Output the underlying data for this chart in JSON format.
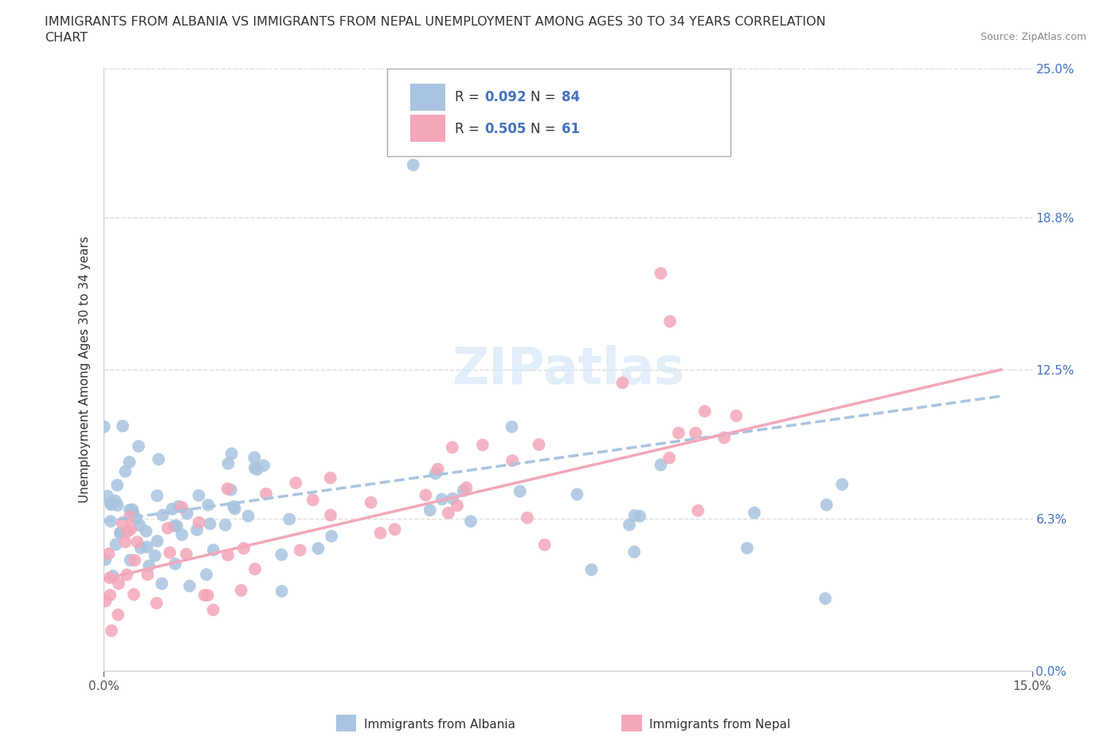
{
  "title_line1": "IMMIGRANTS FROM ALBANIA VS IMMIGRANTS FROM NEPAL UNEMPLOYMENT AMONG AGES 30 TO 34 YEARS CORRELATION",
  "title_line2": "CHART",
  "source_text": "Source: ZipAtlas.com",
  "ylabel": "Unemployment Among Ages 30 to 34 years",
  "xmin": 0.0,
  "xmax": 0.15,
  "ymin": 0.0,
  "ymax": 0.25,
  "yticks": [
    0.0,
    0.063,
    0.125,
    0.188,
    0.25
  ],
  "ytick_labels": [
    "0.0%",
    "6.3%",
    "12.5%",
    "18.8%",
    "25.0%"
  ],
  "xtick_labels": [
    "0.0%",
    "15.0%"
  ],
  "albania_color": "#a8c4e0",
  "nepal_color": "#f4a7b9",
  "albania_R": 0.092,
  "albania_N": 84,
  "nepal_R": 0.505,
  "nepal_N": 61,
  "background_color": "#ffffff",
  "grid_color": "#dddddd"
}
